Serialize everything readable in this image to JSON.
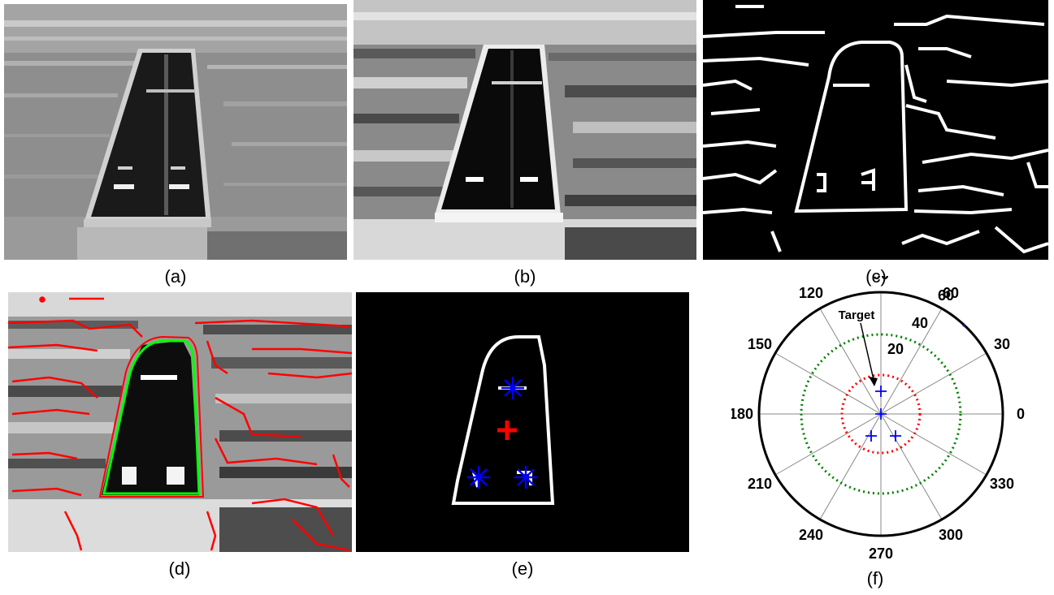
{
  "captions": [
    "(a)",
    "(b)",
    "(c)",
    "(d)",
    "(e)",
    "(f)"
  ],
  "polar": {
    "angle_labels": [
      "90",
      "60",
      "30",
      "0",
      "330",
      "300",
      "270",
      "240",
      "210",
      "180",
      "150",
      "120"
    ],
    "radial_labels": [
      "20",
      "40",
      "60"
    ],
    "annotation": "Target",
    "colors": {
      "inner_circle": "#ff0000",
      "outer_circle": "#008000",
      "points": "#0000ff"
    }
  }
}
